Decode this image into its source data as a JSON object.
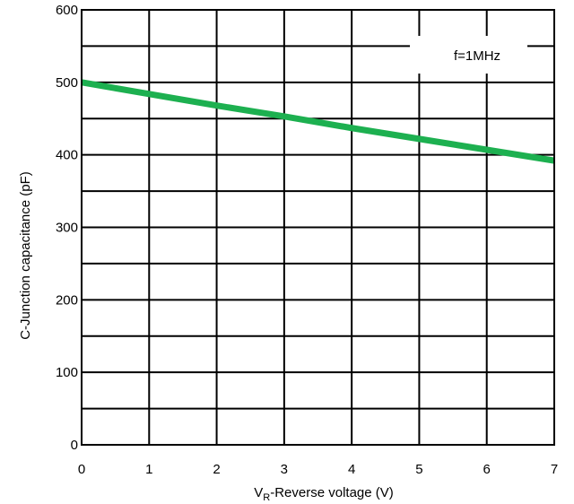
{
  "chart_data": {
    "type": "line",
    "title": "",
    "xlabel": {
      "main": "V",
      "sub": "R",
      "rest": "-Reverse voltage (V)"
    },
    "ylabel": "C-Junction capacitance (pF)",
    "xlim": [
      0,
      7
    ],
    "ylim": [
      0,
      600
    ],
    "x_ticks": [
      0,
      1,
      2,
      3,
      4,
      5,
      6,
      7
    ],
    "y_ticks": [
      0,
      100,
      200,
      300,
      400,
      500,
      600
    ],
    "x_gridlines": [
      0,
      1,
      2,
      3,
      4,
      5,
      6,
      7
    ],
    "y_gridlines": [
      0,
      50,
      100,
      150,
      200,
      250,
      300,
      350,
      400,
      450,
      500,
      550,
      600
    ],
    "grid": true,
    "annotation": "f=1MHz",
    "series": [
      {
        "color": "#1db050",
        "x": [
          0,
          1,
          2,
          3,
          4,
          5,
          6,
          7
        ],
        "y": [
          500,
          484,
          468,
          453,
          437,
          422,
          407,
          392
        ]
      }
    ]
  }
}
